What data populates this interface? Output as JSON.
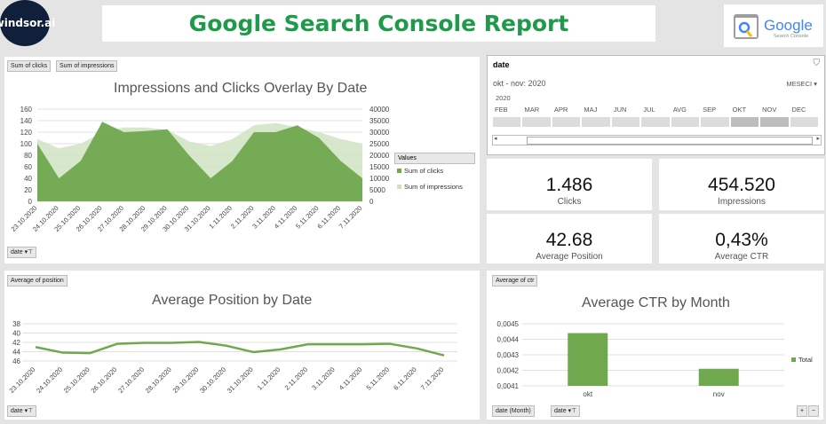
{
  "header": {
    "brand": "windsor.ai",
    "title": "Google Search Console Report",
    "google_logo_word": "Google",
    "google_logo_sub": "Search Console"
  },
  "overlay_panel": {
    "pill_clicks": "Sum of clicks",
    "pill_impressions": "Sum of impressions",
    "filter_label": "date",
    "legend_title": "Values"
  },
  "position_panel": {
    "pill": "Average of position",
    "filter_label": "date"
  },
  "ctr_panel": {
    "pill": "Average of ctr",
    "filter_month": "date (Month)",
    "filter_date": "date"
  },
  "slicer": {
    "title": "date",
    "range": "okt - nov: 2020",
    "level": "MESECI",
    "year": "2020",
    "months": [
      "FEB",
      "MAR",
      "APR",
      "MAJ",
      "JUN",
      "JUL",
      "AVG",
      "SEP",
      "OKT",
      "NOV",
      "DEC"
    ],
    "selected": [
      "OKT",
      "NOV"
    ]
  },
  "kpis": [
    {
      "value": "1.486",
      "label": "Clicks"
    },
    {
      "value": "454.520",
      "label": "Impressions"
    },
    {
      "value": "42.68",
      "label": "Average Position"
    },
    {
      "value": "0,43%",
      "label": "Average CTR"
    }
  ],
  "chart_data": [
    {
      "type": "area",
      "title": "Impressions and Clicks Overlay By Date",
      "x": [
        "23.10.2020",
        "24.10.2020",
        "25.10.2020",
        "26.10.2020",
        "27.10.2020",
        "28.10.2020",
        "29.10.2020",
        "30.10.2020",
        "31.10.2020",
        "1.11.2020",
        "2.11.2020",
        "3.11.2020",
        "4.11.2020",
        "5.11.2020",
        "6.11.2020",
        "7.11.2020"
      ],
      "series": [
        {
          "name": "Sum of clicks",
          "axis": "left",
          "color": "#70a84e",
          "values": [
            100,
            40,
            70,
            138,
            120,
            122,
            125,
            80,
            40,
            70,
            120,
            120,
            132,
            110,
            70,
            40
          ]
        },
        {
          "name": "Sum of impressions",
          "axis": "right",
          "color": "#cfe3c2",
          "values": [
            27000,
            23000,
            25000,
            30000,
            32000,
            32000,
            31000,
            26000,
            24000,
            27000,
            33000,
            34000,
            32000,
            30000,
            27000,
            25000
          ]
        }
      ],
      "yticks_left": [
        0,
        20,
        40,
        60,
        80,
        100,
        120,
        140,
        160
      ],
      "yticks_right": [
        0,
        5000,
        10000,
        15000,
        20000,
        25000,
        30000,
        35000,
        40000
      ],
      "ylim_left": [
        0,
        160
      ],
      "ylim_right": [
        0,
        40000
      ],
      "legend": "right"
    },
    {
      "type": "line",
      "title": "Average Position by Date",
      "x": [
        "23.10.2020",
        "24.10.2020",
        "25.10.2020",
        "26.10.2020",
        "27.10.2020",
        "28.10.2020",
        "29.10.2020",
        "30.10.2020",
        "31.10.2020",
        "1.11.2020",
        "2.11.2020",
        "3.11.2020",
        "4.11.2020",
        "5.11.2020",
        "6.11.2020",
        "7.11.2020"
      ],
      "series": [
        {
          "name": "",
          "color": "#70a84e",
          "values": [
            43,
            44.2,
            44.3,
            42.3,
            42.1,
            42.1,
            41.9,
            42.7,
            44.1,
            43.5,
            42.4,
            42.4,
            42.4,
            42.3,
            43.3,
            44.8
          ]
        }
      ],
      "yticks": [
        38,
        40,
        42,
        44,
        46
      ],
      "ylim": [
        38,
        46
      ],
      "y_reversed": true
    },
    {
      "type": "bar",
      "title": "Average CTR by Month",
      "categories": [
        "okt",
        "nov"
      ],
      "series": [
        {
          "name": "Total",
          "color": "#70a84e",
          "values": [
            0.00444,
            0.00421
          ]
        }
      ],
      "yticks": [
        "0,0041",
        "0,0042",
        "0,0043",
        "0,0044",
        "0,0045"
      ],
      "ylim": [
        0.0041,
        0.0045
      ],
      "legend": "right"
    }
  ]
}
